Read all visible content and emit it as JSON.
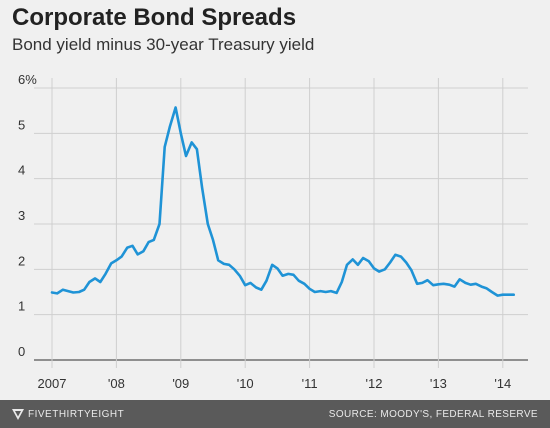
{
  "header": {
    "title": "Corporate Bond Spreads",
    "subtitle": "Bond yield minus 30-year Treasury yield"
  },
  "footer": {
    "brand": "FIVETHIRTYEIGHT",
    "source": "SOURCE: MOODY'S, FEDERAL RESERVE"
  },
  "colors": {
    "line": "#1f93d6",
    "grid": "#cfcfcf",
    "background": "#f0f0f0",
    "footer": "#5a5a5a"
  },
  "chart_data": {
    "type": "line",
    "title": "Corporate Bond Spreads",
    "subtitle": "Bond yield minus 30-year Treasury yield",
    "xlabel": "",
    "ylabel": "",
    "xlim": [
      2007,
      2014.35
    ],
    "ylim": [
      0,
      6
    ],
    "x_ticks": [
      2007,
      2008,
      2009,
      2010,
      2011,
      2012,
      2013,
      2014
    ],
    "x_tick_labels": [
      "2007",
      "'08",
      "'09",
      "'10",
      "'11",
      "'12",
      "'13",
      "'14"
    ],
    "y_ticks": [
      0,
      1,
      2,
      3,
      4,
      5,
      6
    ],
    "y_tick_labels": [
      "0",
      "1",
      "2",
      "3",
      "4",
      "5",
      "6%"
    ],
    "grid": true,
    "series": [
      {
        "x": [
          2007.0,
          2007.08,
          2007.17,
          2007.25,
          2007.33,
          2007.42,
          2007.5,
          2007.58,
          2007.67,
          2007.75,
          2007.83,
          2007.92,
          2008.0,
          2008.08,
          2008.17,
          2008.25,
          2008.33,
          2008.42,
          2008.5,
          2008.58,
          2008.67,
          2008.75,
          2008.83,
          2008.92,
          2009.0,
          2009.08,
          2009.17,
          2009.25,
          2009.33,
          2009.42,
          2009.5,
          2009.58,
          2009.67,
          2009.75,
          2009.83,
          2009.92,
          2010.0,
          2010.08,
          2010.17,
          2010.25,
          2010.33,
          2010.42,
          2010.5,
          2010.58,
          2010.67,
          2010.75,
          2010.83,
          2010.92,
          2011.0,
          2011.08,
          2011.17,
          2011.25,
          2011.33,
          2011.42,
          2011.5,
          2011.58,
          2011.67,
          2011.75,
          2011.83,
          2011.92,
          2012.0,
          2012.08,
          2012.17,
          2012.25,
          2012.33,
          2012.42,
          2012.5,
          2012.58,
          2012.67,
          2012.75,
          2012.83,
          2012.92,
          2013.0,
          2013.08,
          2013.17,
          2013.25,
          2013.33,
          2013.42,
          2013.5,
          2013.58,
          2013.67,
          2013.75,
          2013.83,
          2013.92,
          2014.0,
          2014.08,
          2014.17
        ],
        "values": [
          1.49,
          1.47,
          1.55,
          1.52,
          1.49,
          1.5,
          1.55,
          1.72,
          1.8,
          1.72,
          1.9,
          2.13,
          2.2,
          2.28,
          2.48,
          2.52,
          2.33,
          2.4,
          2.6,
          2.65,
          3.0,
          4.7,
          5.15,
          5.57,
          5.0,
          4.5,
          4.8,
          4.65,
          3.8,
          3.0,
          2.65,
          2.2,
          2.12,
          2.1,
          2.0,
          1.85,
          1.65,
          1.7,
          1.6,
          1.55,
          1.75,
          2.1,
          2.02,
          1.86,
          1.9,
          1.88,
          1.75,
          1.68,
          1.57,
          1.5,
          1.52,
          1.5,
          1.52,
          1.48,
          1.72,
          2.1,
          2.22,
          2.1,
          2.25,
          2.18,
          2.02,
          1.95,
          2.0,
          2.15,
          2.32,
          2.28,
          2.15,
          1.98,
          1.68,
          1.7,
          1.76,
          1.65,
          1.67,
          1.68,
          1.66,
          1.62,
          1.78,
          1.7,
          1.66,
          1.68,
          1.62,
          1.58,
          1.5,
          1.42,
          1.44,
          1.44,
          1.44
        ]
      }
    ]
  }
}
